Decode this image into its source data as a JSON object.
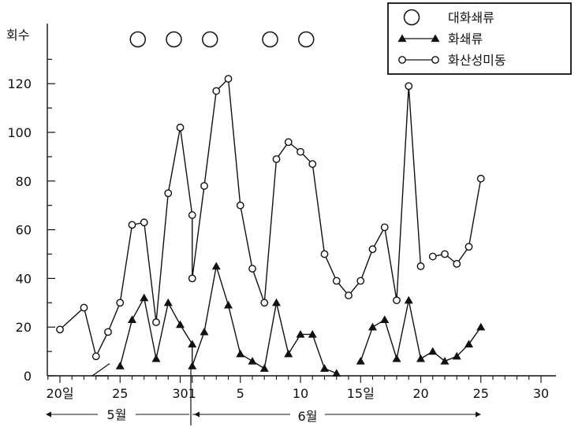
{
  "chart_data": {
    "type": "line",
    "ylabel": "회수",
    "ylim": [
      0,
      130
    ],
    "yticks": [
      0,
      20,
      40,
      60,
      80,
      100,
      120
    ],
    "xlim": [
      19,
      30
    ],
    "xticks": [
      {
        "day": 20,
        "label": "20일"
      },
      {
        "day": 25,
        "label": "25"
      },
      {
        "day": 30,
        "label": "30"
      },
      {
        "day": 31,
        "label": "1"
      },
      {
        "day": 35,
        "label": "5"
      },
      {
        "day": 40,
        "label": "10"
      },
      {
        "day": 45,
        "label": "15일"
      },
      {
        "day": 50,
        "label": "20"
      },
      {
        "day": 55,
        "label": "25"
      },
      {
        "day": 60,
        "label": "30"
      }
    ],
    "x_note": "x values are dates: May 20–31 then June 1–25",
    "months": [
      {
        "label": "5월",
        "from_day": 19,
        "to_day": 31
      },
      {
        "label": "6월",
        "from_day": 31,
        "to_day": 61
      }
    ],
    "legend": {
      "position": "top-right",
      "entries": [
        {
          "label": "대화쇄류",
          "marker": "big-circle"
        },
        {
          "label": "화쇄류",
          "marker": "triangle"
        },
        {
          "label": "화산성미동",
          "marker": "small-circle"
        }
      ]
    },
    "big_circle_events": [
      {
        "date": "5월 27일"
      },
      {
        "date": "5월 30일"
      },
      {
        "date": "6월 3일"
      },
      {
        "date": "6월 8일"
      },
      {
        "date": "6월 11일"
      }
    ],
    "series": [
      {
        "name": "화산성미동",
        "marker": "circle",
        "segments": [
          [
            {
              "date": "5월 20일",
              "value": 19
            },
            {
              "date": "5월 22일",
              "value": 28
            },
            {
              "date": "5월 23일",
              "value": 8
            },
            {
              "date": "5월 24일",
              "value": 18
            },
            {
              "date": "5월 25일",
              "value": 30
            },
            {
              "date": "5월 26일",
              "value": 62
            },
            {
              "date": "5월 27일",
              "value": 63
            },
            {
              "date": "5월 28일",
              "value": 22
            },
            {
              "date": "5월 29일",
              "value": 75
            },
            {
              "date": "5월 30일",
              "value": 102
            },
            {
              "date": "5월 31일",
              "value": 66
            },
            {
              "date": "6월 1일",
              "value": 40
            },
            {
              "date": "6월 2일",
              "value": 78
            },
            {
              "date": "6월 3일",
              "value": 117
            },
            {
              "date": "6월 4일",
              "value": 122
            },
            {
              "date": "6월 5일",
              "value": 70
            },
            {
              "date": "6월 6일",
              "value": 44
            },
            {
              "date": "6월 7일",
              "value": 30
            },
            {
              "date": "6월 8일",
              "value": 89
            },
            {
              "date": "6월 9일",
              "value": 96
            },
            {
              "date": "6월 10일",
              "value": 92
            },
            {
              "date": "6월 11일",
              "value": 87
            },
            {
              "date": "6월 12일",
              "value": 50
            },
            {
              "date": "6월 13일",
              "value": 39
            },
            {
              "date": "6월 14일",
              "value": 33
            },
            {
              "date": "6월 15일",
              "value": 39
            },
            {
              "date": "6월 16일",
              "value": 52
            },
            {
              "date": "6월 17일",
              "value": 61
            },
            {
              "date": "6월 18일",
              "value": 31
            },
            {
              "date": "6월 19일",
              "value": 119
            },
            {
              "date": "6월 20일",
              "value": 45
            }
          ],
          [
            {
              "date": "6월 21일",
              "value": 49
            },
            {
              "date": "6월 22일",
              "value": 50
            },
            {
              "date": "6월 23일",
              "value": 46
            },
            {
              "date": "6월 24일",
              "value": 53
            },
            {
              "date": "6월 25일",
              "value": 81
            }
          ]
        ]
      },
      {
        "name": "화쇄류",
        "marker": "triangle",
        "segments": [
          [
            {
              "date": "5월 23일",
              "value": 0
            },
            {
              "date": "5월 24일",
              "value": 0
            }
          ],
          [
            {
              "date": "5월 25일",
              "value": 4
            },
            {
              "date": "5월 26일",
              "value": 23
            },
            {
              "date": "5월 27일",
              "value": 32
            },
            {
              "date": "5월 28일",
              "value": 7
            },
            {
              "date": "5월 29일",
              "value": 30
            },
            {
              "date": "5월 30일",
              "value": 21
            },
            {
              "date": "5월 31일",
              "value": 13
            },
            {
              "date": "6월 1일",
              "value": 4
            },
            {
              "date": "6월 2일",
              "value": 18
            },
            {
              "date": "6월 3일",
              "value": 45
            },
            {
              "date": "6월 4일",
              "value": 29
            },
            {
              "date": "6월 5일",
              "value": 9
            },
            {
              "date": "6월 6일",
              "value": 6
            },
            {
              "date": "6월 7일",
              "value": 3
            },
            {
              "date": "6월 8일",
              "value": 30
            },
            {
              "date": "6월 9일",
              "value": 9
            },
            {
              "date": "6월 10일",
              "value": 17
            },
            {
              "date": "6월 11일",
              "value": 17
            },
            {
              "date": "6월 12일",
              "value": 3
            },
            {
              "date": "6월 13일",
              "value": 1
            }
          ],
          [
            {
              "date": "6월 15일",
              "value": 6
            },
            {
              "date": "6월 16일",
              "value": 20
            },
            {
              "date": "6월 17일",
              "value": 23
            },
            {
              "date": "6월 18일",
              "value": 7
            },
            {
              "date": "6월 19일",
              "value": 31
            },
            {
              "date": "6월 20일",
              "value": 7
            },
            {
              "date": "6월 21일",
              "value": 10
            },
            {
              "date": "6월 22일",
              "value": 6
            },
            {
              "date": "6월 23일",
              "value": 8
            },
            {
              "date": "6월 24일",
              "value": 13
            },
            {
              "date": "6월 25일",
              "value": 20
            }
          ]
        ]
      }
    ],
    "grid": false,
    "colors": {
      "ink": "#111111",
      "background": "#ffffff"
    }
  }
}
